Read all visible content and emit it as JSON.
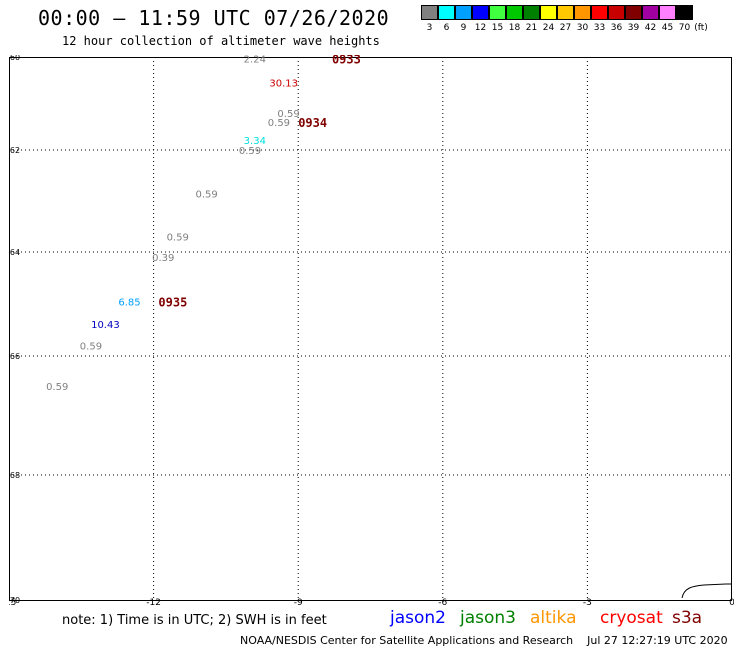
{
  "header": {
    "title": "00:00 – 11:59 UTC 07/26/2020",
    "subtitle": "12 hour collection of altimeter wave heights"
  },
  "legend": {
    "unit": "(ft)",
    "bins": [
      {
        "label": "3",
        "color": "#808080"
      },
      {
        "label": "6",
        "color": "#00ffff"
      },
      {
        "label": "9",
        "color": "#00a0ff"
      },
      {
        "label": "12",
        "color": "#0000ff"
      },
      {
        "label": "15",
        "color": "#40ff40"
      },
      {
        "label": "18",
        "color": "#00c800"
      },
      {
        "label": "21",
        "color": "#008000"
      },
      {
        "label": "24",
        "color": "#ffff00"
      },
      {
        "label": "27",
        "color": "#ffc800"
      },
      {
        "label": "30",
        "color": "#ff9600"
      },
      {
        "label": "33",
        "color": "#ff0000"
      },
      {
        "label": "36",
        "color": "#c80000"
      },
      {
        "label": "39",
        "color": "#800000"
      },
      {
        "label": "42",
        "color": "#a000a0"
      },
      {
        "label": "45",
        "color": "#ff80ff"
      },
      {
        "label": "70",
        "color": "#000000"
      }
    ]
  },
  "map": {
    "x_ticks": [
      "-15",
      "-12",
      "-9",
      "-6",
      "-3",
      "0"
    ],
    "y_ticks": [
      "-60",
      "-62",
      "-64",
      "-66",
      "-68",
      "-70"
    ],
    "points": [
      {
        "value": "2.24",
        "lon": -9.9,
        "lat": -60.03,
        "color": "#808080"
      },
      {
        "value": "30.13",
        "lon": -9.3,
        "lat": -60.55,
        "color": "#c80000"
      },
      {
        "value": "0.59",
        "lon": -9.2,
        "lat": -61.2,
        "color": "#808080"
      },
      {
        "value": "0.59",
        "lon": -9.4,
        "lat": -61.4,
        "color": "#808080"
      },
      {
        "value": "3.34",
        "lon": -9.9,
        "lat": -61.78,
        "color": "#00e0e0"
      },
      {
        "value": "0.59",
        "lon": -10.0,
        "lat": -62.0,
        "color": "#808080"
      },
      {
        "value": "0.59",
        "lon": -10.9,
        "lat": -62.85,
        "color": "#808080"
      },
      {
        "value": "0.59",
        "lon": -11.5,
        "lat": -63.7,
        "color": "#808080"
      },
      {
        "value": "0.39",
        "lon": -11.8,
        "lat": -64.1,
        "color": "#808080"
      },
      {
        "value": "6.85",
        "lon": -12.5,
        "lat": -64.95,
        "color": "#00a0ff"
      },
      {
        "value": "10.43",
        "lon": -13.0,
        "lat": -65.38,
        "color": "#0000c0"
      },
      {
        "value": "0.59",
        "lon": -13.3,
        "lat": -65.8,
        "color": "#808080"
      },
      {
        "value": "0.59",
        "lon": -14.0,
        "lat": -66.5,
        "color": "#808080"
      }
    ],
    "time_labels": [
      {
        "text": "0933",
        "lon": -8.0,
        "lat": -60.03
      },
      {
        "text": "0934",
        "lon": -8.7,
        "lat": -61.4
      },
      {
        "text": "0935",
        "lon": -11.6,
        "lat": -64.95
      }
    ]
  },
  "footer": {
    "note": "note: 1) Time is in UTC; 2) SWH is in feet",
    "satellites": [
      {
        "name": "jason2",
        "color": "#0000ff"
      },
      {
        "name": "jason3",
        "color": "#008000"
      },
      {
        "name": "altika",
        "color": "#ff9600"
      },
      {
        "name": "cryosat",
        "color": "#ff0000"
      },
      {
        "name": "s3a",
        "color": "#800000"
      }
    ],
    "credit": "NOAA/NESDIS Center for Satellite Applications and Research",
    "timestamp": "Jul 27 12:27:19 UTC 2020"
  }
}
